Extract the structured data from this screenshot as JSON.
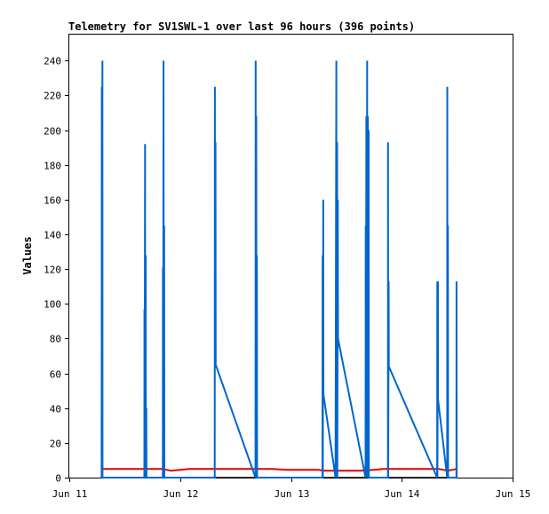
{
  "chart_data": {
    "type": "line",
    "title": "Telemetry for SV1SWL-1 over last 96 hours (396 points)",
    "xlabel": "",
    "ylabel": "Values",
    "xlim": [
      "2024-06-11",
      "2024-06-15"
    ],
    "ylim": [
      0,
      255
    ],
    "x_ticks": [
      "Jun 11",
      "Jun 12",
      "Jun 13",
      "Jun 14",
      "Jun 15"
    ],
    "y_ticks": [
      0,
      20,
      40,
      60,
      80,
      100,
      120,
      140,
      160,
      180,
      200,
      220,
      240
    ],
    "grid": false,
    "series": [
      {
        "color": "#0066cc",
        "points": [
          [
            "2024-06-11T07:00",
            0
          ],
          [
            "2024-06-11T07:02",
            225
          ],
          [
            "2024-06-11T07:04",
            0
          ],
          [
            "2024-06-11T07:10",
            240
          ],
          [
            "2024-06-11T07:12",
            0
          ],
          [
            "2024-06-11T16:15",
            0
          ],
          [
            "2024-06-11T16:17",
            97
          ],
          [
            "2024-06-11T16:19",
            0
          ],
          [
            "2024-06-11T16:25",
            192
          ],
          [
            "2024-06-11T16:27",
            0
          ],
          [
            "2024-06-11T16:33",
            128
          ],
          [
            "2024-06-11T16:35",
            0
          ],
          [
            "2024-06-11T16:41",
            40
          ],
          [
            "2024-06-11T16:43",
            0
          ],
          [
            "2024-06-11T20:15",
            0
          ],
          [
            "2024-06-11T20:17",
            121
          ],
          [
            "2024-06-11T20:19",
            0
          ],
          [
            "2024-06-11T20:25",
            240
          ],
          [
            "2024-06-11T20:27",
            0
          ],
          [
            "2024-06-11T20:33",
            145
          ],
          [
            "2024-06-11T20:35",
            0
          ],
          [
            "2024-06-12T07:30",
            0
          ],
          [
            "2024-06-12T07:32",
            225
          ],
          [
            "2024-06-12T07:34",
            65
          ],
          [
            "2024-06-12T07:40",
            193
          ],
          [
            "2024-06-12T07:42",
            65
          ],
          [
            "2024-06-12T16:20",
            0
          ],
          [
            "2024-06-12T16:22",
            240
          ],
          [
            "2024-06-12T16:24",
            0
          ],
          [
            "2024-06-12T16:30",
            208
          ],
          [
            "2024-06-12T16:32",
            0
          ],
          [
            "2024-06-12T16:38",
            128
          ],
          [
            "2024-06-12T16:40",
            0
          ],
          [
            "2024-06-13T06:50",
            0
          ],
          [
            "2024-06-13T06:52",
            128
          ],
          [
            "2024-06-13T06:54",
            0
          ],
          [
            "2024-06-13T07:00",
            160
          ],
          [
            "2024-06-13T07:02",
            48
          ],
          [
            "2024-06-13T09:40",
            0
          ],
          [
            "2024-06-13T09:50",
            240
          ],
          [
            "2024-06-13T09:52",
            0
          ],
          [
            "2024-06-13T10:00",
            193
          ],
          [
            "2024-06-13T10:02",
            0
          ],
          [
            "2024-06-13T10:10",
            160
          ],
          [
            "2024-06-13T10:12",
            80
          ],
          [
            "2024-06-13T16:10",
            0
          ],
          [
            "2024-06-13T16:12",
            145
          ],
          [
            "2024-06-13T16:14",
            0
          ],
          [
            "2024-06-13T16:20",
            208
          ],
          [
            "2024-06-13T16:22",
            0
          ],
          [
            "2024-06-13T16:30",
            240
          ],
          [
            "2024-06-13T16:32",
            0
          ],
          [
            "2024-06-13T16:40",
            208
          ],
          [
            "2024-06-13T16:42",
            0
          ],
          [
            "2024-06-13T16:50",
            200
          ],
          [
            "2024-06-13T16:52",
            0
          ],
          [
            "2024-06-13T21:00",
            0
          ],
          [
            "2024-06-13T21:02",
            193
          ],
          [
            "2024-06-13T21:04",
            0
          ],
          [
            "2024-06-13T21:10",
            113
          ],
          [
            "2024-06-13T21:12",
            64
          ],
          [
            "2024-06-14T07:40",
            0
          ],
          [
            "2024-06-14T07:42",
            113
          ],
          [
            "2024-06-14T07:44",
            0
          ],
          [
            "2024-06-14T07:50",
            113
          ],
          [
            "2024-06-14T07:52",
            45
          ],
          [
            "2024-06-14T09:50",
            0
          ],
          [
            "2024-06-14T09:52",
            225
          ],
          [
            "2024-06-14T09:54",
            0
          ],
          [
            "2024-06-14T10:00",
            145
          ],
          [
            "2024-06-14T10:02",
            0
          ],
          [
            "2024-06-14T11:50",
            0
          ],
          [
            "2024-06-14T11:52",
            113
          ],
          [
            "2024-06-14T11:54",
            0
          ]
        ]
      },
      {
        "color": "#dd0000",
        "points": [
          [
            "2024-06-11T07:00",
            5
          ],
          [
            "2024-06-11T20:00",
            5
          ],
          [
            "2024-06-11T22:00",
            4
          ],
          [
            "2024-06-12T02:00",
            5
          ],
          [
            "2024-06-12T20:00",
            5
          ],
          [
            "2024-06-12T23:00",
            4.5
          ],
          [
            "2024-06-13T06:00",
            4.5
          ],
          [
            "2024-06-13T07:00",
            4
          ],
          [
            "2024-06-13T15:00",
            4
          ],
          [
            "2024-06-13T18:00",
            4.5
          ],
          [
            "2024-06-13T20:00",
            5
          ],
          [
            "2024-06-14T08:00",
            5
          ],
          [
            "2024-06-14T10:00",
            4
          ],
          [
            "2024-06-14T12:00",
            5
          ]
        ]
      },
      {
        "color": "#000000",
        "points": [
          [
            "2024-06-11T07:00",
            0
          ],
          [
            "2024-06-14T12:00",
            0
          ]
        ]
      }
    ]
  }
}
